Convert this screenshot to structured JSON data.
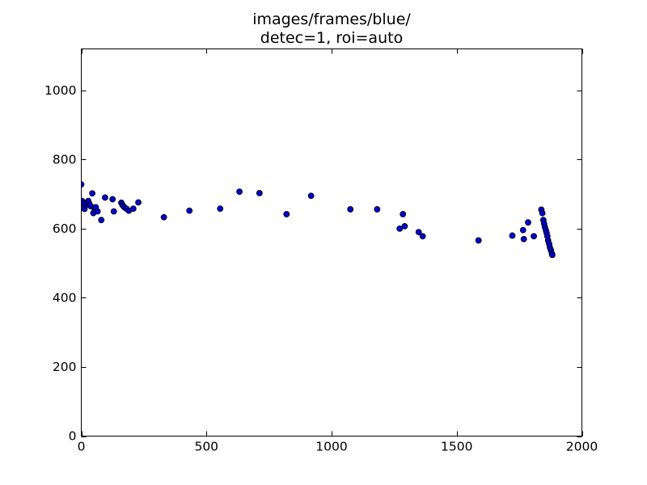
{
  "chart_data": {
    "type": "scatter",
    "title_lines": [
      "images/frames/blue/",
      "detec=1, roi=auto"
    ],
    "xlabel": "",
    "ylabel": "",
    "xlim": [
      0,
      2000
    ],
    "ylim": [
      0,
      1120
    ],
    "x_ticks": [
      0,
      500,
      1000,
      1500,
      2000
    ],
    "y_ticks": [
      0,
      200,
      400,
      600,
      800,
      1000
    ],
    "x_tick_labels": [
      "0",
      "500",
      "1000",
      "1500",
      "2000"
    ],
    "y_tick_labels": [
      "0",
      "200",
      "400",
      "600",
      "800",
      "1000"
    ],
    "grid": false,
    "legend": "none",
    "series": [
      {
        "marker_color": "#0000cc",
        "points": [
          [
            0,
            728
          ],
          [
            3,
            680
          ],
          [
            8,
            672
          ],
          [
            13,
            657
          ],
          [
            18,
            668
          ],
          [
            22,
            675
          ],
          [
            28,
            680
          ],
          [
            32,
            672
          ],
          [
            38,
            665
          ],
          [
            44,
            702
          ],
          [
            48,
            645
          ],
          [
            52,
            660
          ],
          [
            58,
            662
          ],
          [
            65,
            650
          ],
          [
            80,
            625
          ],
          [
            95,
            690
          ],
          [
            125,
            685
          ],
          [
            130,
            650
          ],
          [
            160,
            675
          ],
          [
            165,
            668
          ],
          [
            172,
            662
          ],
          [
            180,
            658
          ],
          [
            190,
            652
          ],
          [
            208,
            658
          ],
          [
            228,
            676
          ],
          [
            330,
            633
          ],
          [
            432,
            652
          ],
          [
            555,
            658
          ],
          [
            632,
            707
          ],
          [
            712,
            703
          ],
          [
            820,
            642
          ],
          [
            918,
            695
          ],
          [
            1075,
            656
          ],
          [
            1182,
            656
          ],
          [
            1272,
            600
          ],
          [
            1285,
            642
          ],
          [
            1292,
            607
          ],
          [
            1348,
            590
          ],
          [
            1364,
            578
          ],
          [
            1587,
            566
          ],
          [
            1722,
            580
          ],
          [
            1765,
            596
          ],
          [
            1768,
            570
          ],
          [
            1785,
            618
          ],
          [
            1808,
            578
          ],
          [
            1838,
            655
          ],
          [
            1842,
            645
          ],
          [
            1846,
            625
          ],
          [
            1849,
            615
          ],
          [
            1852,
            605
          ],
          [
            1856,
            596
          ],
          [
            1859,
            588
          ],
          [
            1862,
            578
          ],
          [
            1865,
            566
          ],
          [
            1869,
            556
          ],
          [
            1872,
            546
          ],
          [
            1876,
            538
          ],
          [
            1880,
            528
          ],
          [
            1882,
            524
          ]
        ]
      }
    ]
  }
}
